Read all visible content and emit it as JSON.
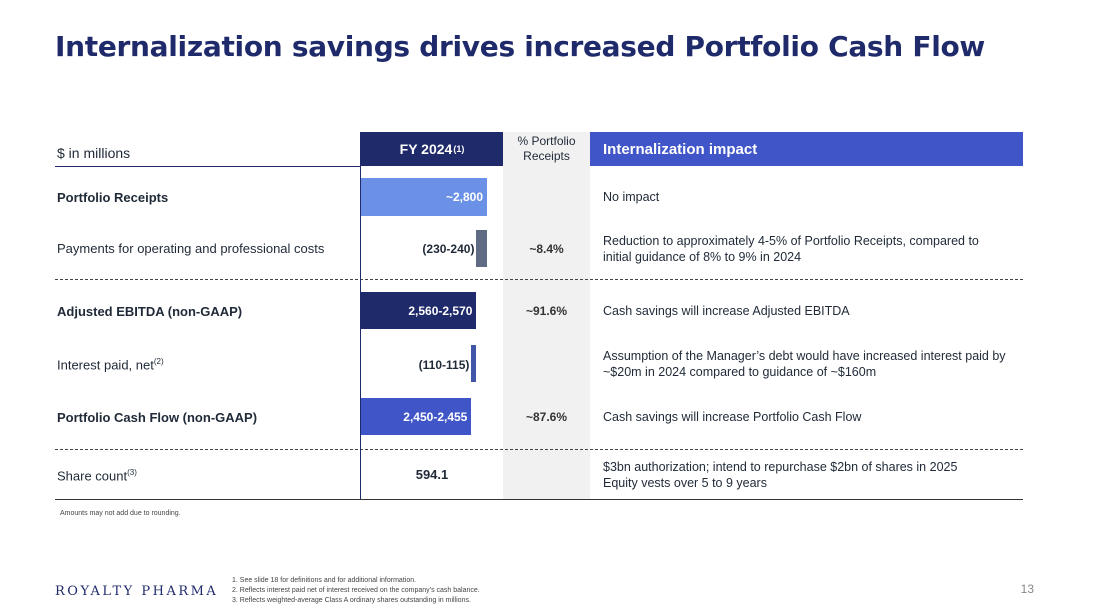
{
  "title": "Internalization savings drives increased Portfolio Cash Flow",
  "header": {
    "units": "$ in millions",
    "fy_label": "FY 2024",
    "fy_sup": "(1)",
    "pct_label_line1": "% Portfolio",
    "pct_label_line2": "Receipts",
    "impact_label": "Internalization impact"
  },
  "rows": [
    {
      "label": "Portfolio Receipts",
      "value": "~2,800",
      "pct": "",
      "impact": "No impact"
    },
    {
      "label": "Payments for operating and professional costs",
      "value": "(230-240)",
      "pct": "~8.4%",
      "impact_line1": "Reduction to approximately 4-5% of Portfolio Receipts, compared to",
      "impact_line2": "initial guidance of 8% to 9% in 2024"
    },
    {
      "label": "Adjusted EBITDA (non-GAAP)",
      "value": "2,560-2,570",
      "pct": "~91.6%",
      "impact": "Cash savings will increase Adjusted EBITDA"
    },
    {
      "label": "Interest paid, net",
      "label_sup": "(2)",
      "value": "(110-115)",
      "pct": "",
      "impact_line1": "Assumption of the Manager’s debt would have increased interest paid by",
      "impact_line2": "~$20m in 2024 compared to guidance of ~$160m"
    },
    {
      "label": "Portfolio Cash Flow (non-GAAP)",
      "value": "2,450-2,455",
      "pct": "~87.6%",
      "impact": "Cash savings will increase Portfolio Cash Flow"
    },
    {
      "label": "Share count",
      "label_sup": "(3)",
      "value": "594.1",
      "pct": "",
      "impact_line1": "$3bn authorization; intend to repurchase $2bn of shares in 2025",
      "impact_line2": "Equity vests over 5 to 9 years"
    }
  ],
  "note": "Amounts may not add due to rounding.",
  "logo": "ROYALTY PHARMA",
  "footnotes": [
    "1.  See slide 18 for definitions and for additional information.",
    "2.  Reflects interest paid net of interest received on the company’s cash balance.",
    "3.  Reflects weighted-average Class A ordinary shares outstanding in millions."
  ],
  "page_number": "13",
  "colors": {
    "navy": "#1f2a6b",
    "light_blue": "#6b91e6",
    "slate": "#5f6b82",
    "steel_blue": "#3f57a6",
    "royal_blue": "#4056c8"
  },
  "chart_data": {
    "type": "waterfall-bar",
    "categories": [
      "Portfolio Receipts",
      "Payments for operating and professional costs",
      "Adjusted EBITDA (non-GAAP)",
      "Interest paid, net",
      "Portfolio Cash Flow (non-GAAP)"
    ],
    "values": [
      2800,
      -235,
      2565,
      -112.5,
      2452.5
    ],
    "labels": [
      "~2,800",
      "(230-240)",
      "2,560-2,570",
      "(110-115)",
      "2,450-2,455"
    ]
  }
}
